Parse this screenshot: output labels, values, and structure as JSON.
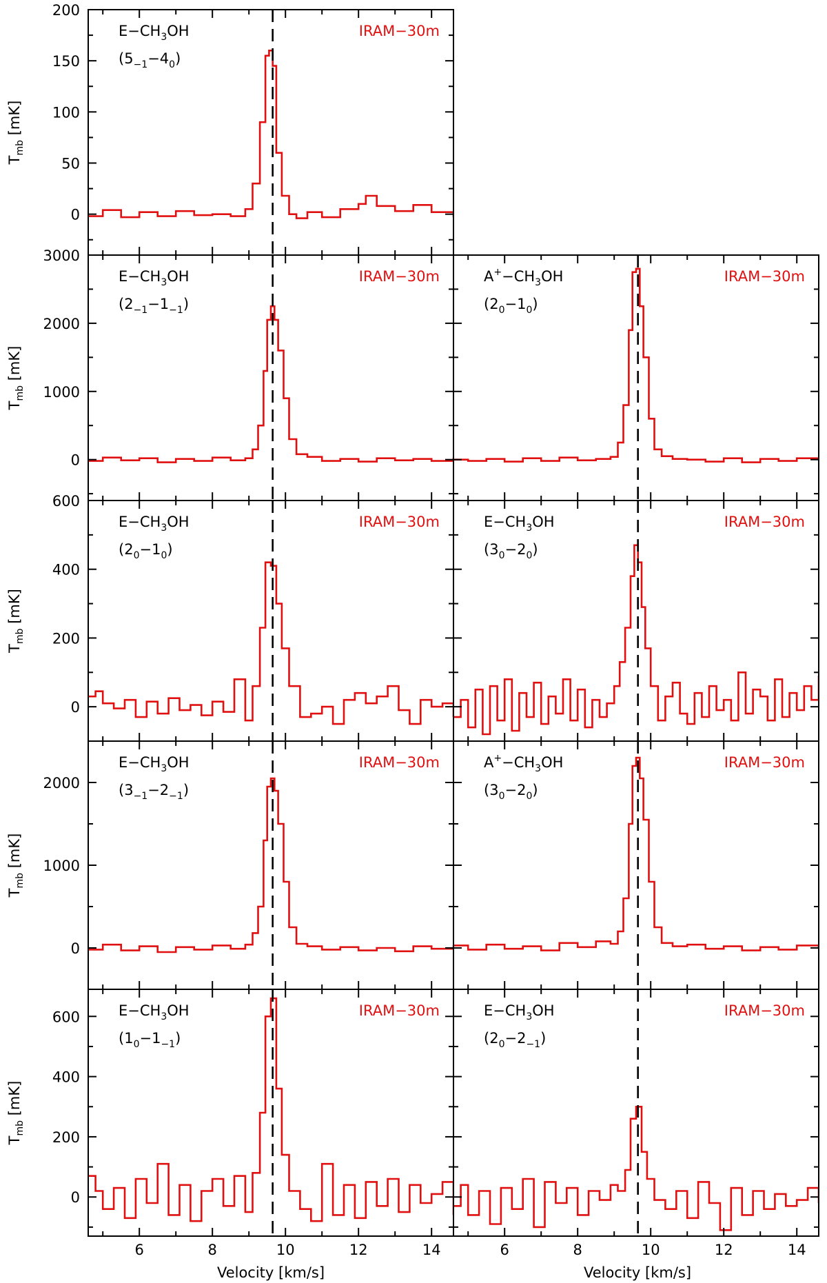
{
  "figure": {
    "xlabel": "Velocity [km/s]",
    "ylabel": "T",
    "ylabel_sub": "mb",
    "ylabel_unit": " [mK]",
    "colors": {
      "spectrum": "#e01010",
      "frame": "#000000",
      "velocity_marker": "#000000",
      "telescope_label": "#e01010"
    }
  },
  "chart_data": [
    {
      "type": "line",
      "step": true,
      "species": "E−CH",
      "species_sub": "3",
      "species_end": "OH",
      "transition": [
        [
          "(5",
          ""
        ],
        [
          "−1",
          "sub"
        ],
        [
          "−4",
          ""
        ],
        [
          "0",
          "sub"
        ],
        [
          ")",
          ""
        ]
      ],
      "telescope": "IRAM−30m",
      "xlim": [
        4.6,
        14.6
      ],
      "ylim": [
        -40,
        200
      ],
      "vline": 9.65,
      "yticks": [
        0,
        50,
        100,
        150,
        200
      ],
      "ytick_labels": [
        "0",
        "50",
        "100",
        "150",
        "200"
      ],
      "x": [
        4.6,
        5.0,
        5.5,
        6.0,
        6.5,
        7.0,
        7.5,
        8.0,
        8.5,
        8.9,
        9.1,
        9.3,
        9.45,
        9.55,
        9.65,
        9.75,
        9.9,
        10.1,
        10.3,
        10.6,
        11.0,
        11.5,
        12.0,
        12.2,
        12.5,
        13.0,
        13.5,
        14.0,
        14.6
      ],
      "y": [
        -2,
        4,
        -3,
        2,
        -2,
        3,
        -1,
        0,
        -2,
        5,
        30,
        90,
        155,
        160,
        145,
        60,
        18,
        0,
        -4,
        2,
        -3,
        5,
        10,
        18,
        8,
        3,
        9,
        2,
        -3
      ]
    },
    {
      "type": "line",
      "step": true,
      "species": "E−CH",
      "species_sub": "3",
      "species_end": "OH",
      "transition": [
        [
          "(2",
          ""
        ],
        [
          "−1",
          "sub"
        ],
        [
          "−1",
          ""
        ],
        [
          "−1",
          "sub"
        ],
        [
          ")",
          ""
        ]
      ],
      "telescope": "IRAM−30m",
      "xlim": [
        4.6,
        14.6
      ],
      "ylim": [
        -600,
        3000
      ],
      "vline": 9.65,
      "yticks": [
        0,
        1000,
        2000,
        3000
      ],
      "ytick_labels": [
        "0",
        "1000",
        "2000",
        "3000"
      ],
      "x": [
        4.6,
        5.0,
        5.5,
        6.0,
        6.5,
        7.0,
        7.5,
        8.0,
        8.5,
        8.9,
        9.1,
        9.25,
        9.4,
        9.5,
        9.6,
        9.7,
        9.8,
        9.95,
        10.1,
        10.3,
        10.6,
        11.0,
        11.5,
        12.0,
        12.5,
        13.0,
        13.5,
        14.0,
        14.6
      ],
      "y": [
        -20,
        30,
        -10,
        20,
        -40,
        10,
        -20,
        30,
        -10,
        20,
        150,
        500,
        1300,
        2050,
        2250,
        2050,
        1600,
        900,
        300,
        80,
        40,
        -20,
        10,
        -30,
        20,
        -10,
        10,
        -20,
        30
      ]
    },
    {
      "type": "line",
      "step": true,
      "species": "A",
      "species_sup": "+",
      "species_mid": "−CH",
      "species_sub": "3",
      "species_end": "OH",
      "transition": [
        [
          "(2",
          ""
        ],
        [
          "0",
          "sub"
        ],
        [
          "−1",
          ""
        ],
        [
          "0",
          "sub"
        ],
        [
          ")",
          ""
        ]
      ],
      "telescope": "IRAM−30m",
      "xlim": [
        4.6,
        14.6
      ],
      "ylim": [
        -600,
        3000
      ],
      "vline": 9.65,
      "yticks": [
        0,
        1000,
        2000,
        3000
      ],
      "ytick_labels": [
        "0",
        "1000",
        "2000",
        "3000"
      ],
      "x": [
        4.6,
        5.0,
        5.5,
        6.0,
        6.5,
        7.0,
        7.5,
        8.0,
        8.5,
        8.9,
        9.1,
        9.25,
        9.4,
        9.5,
        9.6,
        9.7,
        9.8,
        9.95,
        10.1,
        10.3,
        10.6,
        11.0,
        11.5,
        12.0,
        12.5,
        13.0,
        13.5,
        14.0,
        14.6
      ],
      "y": [
        0,
        -20,
        10,
        -30,
        20,
        -20,
        30,
        -10,
        10,
        40,
        250,
        800,
        1900,
        2750,
        2800,
        2250,
        1500,
        600,
        150,
        50,
        10,
        0,
        -30,
        20,
        -40,
        10,
        -20,
        20,
        -10
      ]
    },
    {
      "type": "line",
      "step": true,
      "species": "E−CH",
      "species_sub": "3",
      "species_end": "OH",
      "transition": [
        [
          "(2",
          ""
        ],
        [
          "0",
          "sub"
        ],
        [
          "−1",
          ""
        ],
        [
          "0",
          "sub"
        ],
        [
          ")",
          ""
        ]
      ],
      "telescope": "IRAM−30m",
      "xlim": [
        4.6,
        14.6
      ],
      "ylim": [
        -100,
        600
      ],
      "vline": 9.65,
      "yticks": [
        0,
        200,
        400,
        600
      ],
      "ytick_labels": [
        "0",
        "200",
        "400",
        "600"
      ],
      "x": [
        4.6,
        4.8,
        5.0,
        5.3,
        5.6,
        5.9,
        6.2,
        6.5,
        6.8,
        7.1,
        7.4,
        7.7,
        8.0,
        8.3,
        8.6,
        8.9,
        9.1,
        9.3,
        9.45,
        9.6,
        9.75,
        9.9,
        10.1,
        10.4,
        10.7,
        11.0,
        11.3,
        11.6,
        11.9,
        12.2,
        12.5,
        12.8,
        13.1,
        13.4,
        13.7,
        14.0,
        14.3,
        14.6
      ],
      "y": [
        30,
        45,
        10,
        -5,
        20,
        -30,
        15,
        -20,
        25,
        -10,
        5,
        -25,
        15,
        -15,
        80,
        -40,
        60,
        230,
        420,
        410,
        300,
        170,
        60,
        -30,
        -20,
        0,
        -50,
        20,
        40,
        10,
        30,
        60,
        -10,
        -50,
        20,
        0,
        10,
        -30
      ]
    },
    {
      "type": "line",
      "step": true,
      "species": "E−CH",
      "species_sub": "3",
      "species_end": "OH",
      "transition": [
        [
          "(3",
          ""
        ],
        [
          "0",
          "sub"
        ],
        [
          "−2",
          ""
        ],
        [
          "0",
          "sub"
        ],
        [
          ")",
          ""
        ]
      ],
      "telescope": "IRAM−30m",
      "xlim": [
        4.6,
        14.6
      ],
      "ylim": [
        -100,
        600
      ],
      "vline": 9.65,
      "yticks": [
        0,
        200,
        400,
        600
      ],
      "ytick_labels": [
        "0",
        "200",
        "400",
        "600"
      ],
      "x": [
        4.6,
        4.8,
        5.0,
        5.2,
        5.4,
        5.6,
        5.8,
        6.0,
        6.2,
        6.4,
        6.6,
        6.8,
        7.0,
        7.2,
        7.4,
        7.6,
        7.8,
        8.0,
        8.2,
        8.4,
        8.6,
        8.8,
        9.0,
        9.15,
        9.3,
        9.45,
        9.55,
        9.65,
        9.75,
        9.85,
        10.0,
        10.2,
        10.4,
        10.6,
        10.8,
        11.0,
        11.2,
        11.4,
        11.6,
        11.8,
        12.0,
        12.2,
        12.4,
        12.6,
        12.8,
        13.0,
        13.2,
        13.4,
        13.6,
        13.8,
        14.0,
        14.2,
        14.4,
        14.6
      ],
      "y": [
        -30,
        20,
        -60,
        50,
        -80,
        60,
        -40,
        80,
        -70,
        40,
        -30,
        70,
        -50,
        30,
        -20,
        80,
        -40,
        50,
        -60,
        20,
        -30,
        10,
        60,
        130,
        230,
        380,
        470,
        420,
        290,
        170,
        60,
        -40,
        30,
        70,
        -20,
        -50,
        40,
        -30,
        60,
        -10,
        20,
        -40,
        100,
        -20,
        50,
        30,
        -40,
        80,
        -30,
        40,
        -10,
        60,
        20,
        90
      ]
    },
    {
      "type": "line",
      "step": true,
      "species": "E−CH",
      "species_sub": "3",
      "species_end": "OH",
      "transition": [
        [
          "(3",
          ""
        ],
        [
          "−1",
          "sub"
        ],
        [
          "−2",
          ""
        ],
        [
          "−1",
          "sub"
        ],
        [
          ")",
          ""
        ]
      ],
      "telescope": "IRAM−30m",
      "xlim": [
        4.6,
        14.6
      ],
      "ylim": [
        -500,
        2500
      ],
      "vline": 9.65,
      "yticks": [
        0,
        1000,
        2000
      ],
      "ytick_labels": [
        "0",
        "1000",
        "2000"
      ],
      "x": [
        4.6,
        5.0,
        5.5,
        6.0,
        6.5,
        7.0,
        7.5,
        8.0,
        8.5,
        8.9,
        9.1,
        9.25,
        9.4,
        9.5,
        9.6,
        9.7,
        9.8,
        9.95,
        10.1,
        10.3,
        10.6,
        11.0,
        11.5,
        12.0,
        12.5,
        13.0,
        13.5,
        14.0,
        14.6
      ],
      "y": [
        -20,
        40,
        -30,
        20,
        -50,
        10,
        -20,
        30,
        -10,
        40,
        180,
        500,
        1300,
        1950,
        2050,
        1900,
        1500,
        800,
        250,
        50,
        20,
        -20,
        10,
        -30,
        0,
        -40,
        20,
        -10,
        30
      ]
    },
    {
      "type": "line",
      "step": true,
      "species": "A",
      "species_sup": "+",
      "species_mid": "−CH",
      "species_sub": "3",
      "species_end": "OH",
      "transition": [
        [
          "(3",
          ""
        ],
        [
          "0",
          "sub"
        ],
        [
          "−2",
          ""
        ],
        [
          "0",
          "sub"
        ],
        [
          ")",
          ""
        ]
      ],
      "telescope": "IRAM−30m",
      "xlim": [
        4.6,
        14.6
      ],
      "ylim": [
        -500,
        2500
      ],
      "vline": 9.65,
      "yticks": [
        0,
        1000,
        2000
      ],
      "ytick_labels": [
        "0",
        "1000",
        "2000"
      ],
      "x": [
        4.6,
        5.0,
        5.5,
        6.0,
        6.5,
        7.0,
        7.5,
        8.0,
        8.5,
        8.9,
        9.1,
        9.25,
        9.4,
        9.5,
        9.6,
        9.7,
        9.8,
        9.95,
        10.1,
        10.3,
        10.6,
        11.0,
        11.5,
        12.0,
        12.5,
        13.0,
        13.5,
        14.0,
        14.6
      ],
      "y": [
        30,
        -20,
        40,
        -10,
        20,
        -30,
        60,
        10,
        80,
        50,
        200,
        600,
        1500,
        2200,
        2300,
        2050,
        1550,
        800,
        250,
        60,
        20,
        40,
        -10,
        20,
        -30,
        10,
        -20,
        30,
        -10
      ]
    },
    {
      "type": "line",
      "step": true,
      "species": "E−CH",
      "species_sub": "3",
      "species_end": "OH",
      "transition": [
        [
          "(1",
          ""
        ],
        [
          "0",
          "sub"
        ],
        [
          "−1",
          ""
        ],
        [
          "−1",
          "sub"
        ],
        [
          ")",
          ""
        ]
      ],
      "telescope": "IRAM−30m",
      "xlim": [
        4.6,
        14.6
      ],
      "ylim": [
        -130,
        690
      ],
      "vline": 9.65,
      "yticks": [
        0,
        200,
        400,
        600
      ],
      "ytick_labels": [
        "0",
        "200",
        "400",
        "600"
      ],
      "x": [
        4.6,
        4.8,
        5.0,
        5.3,
        5.6,
        5.9,
        6.2,
        6.5,
        6.8,
        7.1,
        7.4,
        7.7,
        8.0,
        8.3,
        8.6,
        8.9,
        9.1,
        9.3,
        9.45,
        9.6,
        9.75,
        9.9,
        10.1,
        10.4,
        10.7,
        11.0,
        11.3,
        11.6,
        11.9,
        12.2,
        12.5,
        12.8,
        13.1,
        13.4,
        13.7,
        14.0,
        14.3,
        14.6
      ],
      "y": [
        70,
        20,
        -40,
        30,
        -70,
        60,
        -20,
        110,
        -60,
        40,
        -80,
        20,
        60,
        -30,
        70,
        -50,
        80,
        280,
        600,
        660,
        360,
        140,
        20,
        -40,
        -80,
        110,
        -60,
        40,
        -70,
        50,
        -30,
        60,
        -50,
        40,
        -20,
        10,
        50,
        -60
      ]
    },
    {
      "type": "line",
      "step": true,
      "species": "E−CH",
      "species_sub": "3",
      "species_end": "OH",
      "transition": [
        [
          "(2",
          ""
        ],
        [
          "0",
          "sub"
        ],
        [
          "−2",
          ""
        ],
        [
          "−1",
          "sub"
        ],
        [
          ")",
          ""
        ]
      ],
      "telescope": "IRAM−30m",
      "xlim": [
        4.6,
        14.6
      ],
      "ylim": [
        -130,
        690
      ],
      "vline": 9.65,
      "yticks": [
        0,
        200,
        400,
        600
      ],
      "ytick_labels": [
        "0",
        "200",
        "400",
        "600"
      ],
      "x": [
        4.6,
        4.8,
        5.0,
        5.3,
        5.6,
        5.9,
        6.2,
        6.5,
        6.8,
        7.1,
        7.4,
        7.7,
        8.0,
        8.3,
        8.6,
        8.9,
        9.1,
        9.3,
        9.45,
        9.6,
        9.75,
        9.9,
        10.1,
        10.4,
        10.7,
        11.0,
        11.3,
        11.6,
        11.9,
        12.2,
        12.5,
        12.8,
        13.1,
        13.4,
        13.7,
        14.0,
        14.3,
        14.6
      ],
      "y": [
        -30,
        40,
        -60,
        20,
        -90,
        30,
        -40,
        60,
        -100,
        50,
        -20,
        30,
        -60,
        20,
        -10,
        40,
        20,
        90,
        260,
        300,
        150,
        60,
        -10,
        -40,
        20,
        -70,
        50,
        -20,
        -110,
        30,
        -60,
        20,
        -40,
        10,
        -30,
        -10,
        30,
        -20
      ]
    }
  ]
}
